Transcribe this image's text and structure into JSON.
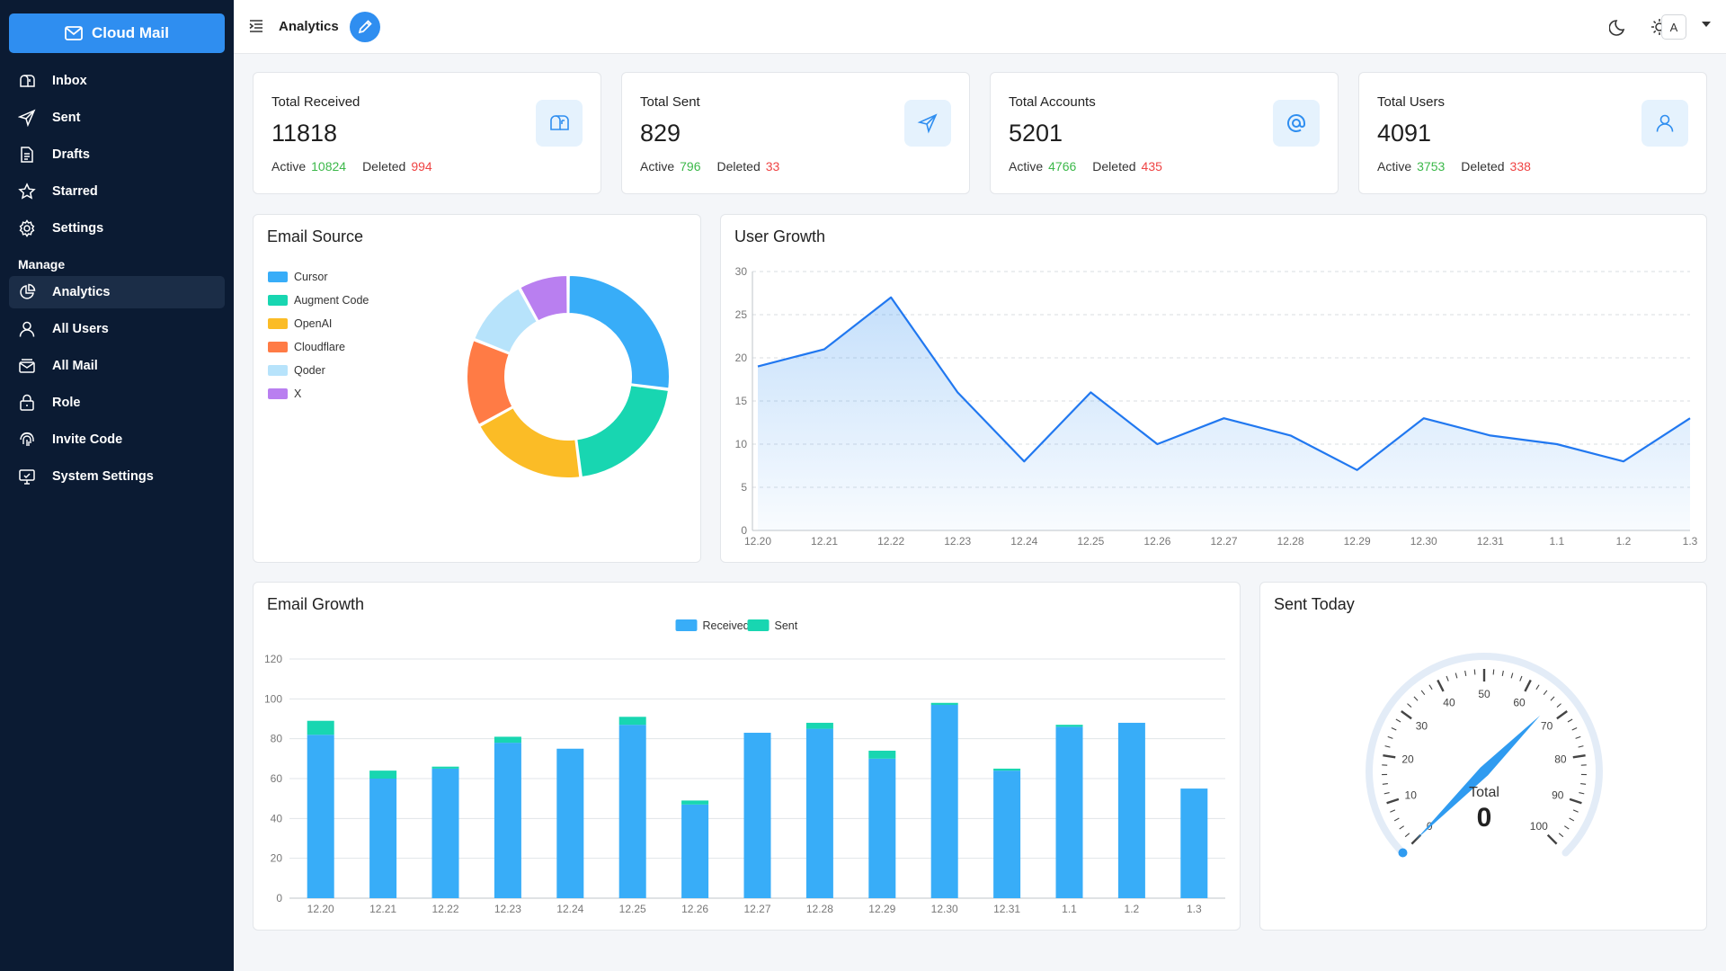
{
  "app": {
    "name": "Cloud Mail",
    "page_title": "Analytics"
  },
  "sidebar": {
    "items": [
      {
        "label": "Inbox",
        "icon": "inbox-icon"
      },
      {
        "label": "Sent",
        "icon": "send-icon"
      },
      {
        "label": "Drafts",
        "icon": "draft-icon"
      },
      {
        "label": "Starred",
        "icon": "star-icon"
      },
      {
        "label": "Settings",
        "icon": "gear-icon"
      }
    ],
    "section_label": "Manage",
    "manage_items": [
      {
        "label": "Analytics",
        "icon": "pie-chart-icon",
        "active": true
      },
      {
        "label": "All Users",
        "icon": "user-icon"
      },
      {
        "label": "All Mail",
        "icon": "mail-stack-icon"
      },
      {
        "label": "Role",
        "icon": "lock-icon"
      },
      {
        "label": "Invite Code",
        "icon": "fingerprint-icon"
      },
      {
        "label": "System Settings",
        "icon": "monitor-settings-icon"
      }
    ]
  },
  "header": {
    "avatar_letter": "A"
  },
  "stats": [
    {
      "title": "Total Received",
      "value": "11818",
      "active_label": "Active",
      "active": "10824",
      "deleted_label": "Deleted",
      "deleted": "994",
      "icon": "mailbox-icon"
    },
    {
      "title": "Total Sent",
      "value": "829",
      "active_label": "Active",
      "active": "796",
      "deleted_label": "Deleted",
      "deleted": "33",
      "icon": "send-icon"
    },
    {
      "title": "Total Accounts",
      "value": "5201",
      "active_label": "Active",
      "active": "4766",
      "deleted_label": "Deleted",
      "deleted": "435",
      "icon": "at-sign-icon"
    },
    {
      "title": "Total Users",
      "value": "4091",
      "active_label": "Active",
      "active": "3753",
      "deleted_label": "Deleted",
      "deleted": "338",
      "icon": "user-icon"
    }
  ],
  "colors": {
    "received": "#38adf8",
    "sent": "#18d6b1",
    "accent": "#2f8ef0",
    "active": "#3cb84a",
    "deleted": "#ef4444"
  },
  "chart_data": [
    {
      "type": "pie",
      "title": "Email Source",
      "donut": true,
      "legend_position": "top-left",
      "slices": [
        {
          "label": "Cursor",
          "value": 27,
          "color": "#38adf8"
        },
        {
          "label": "Augment Code",
          "value": 21,
          "color": "#18d6b1"
        },
        {
          "label": "OpenAI",
          "value": 19,
          "color": "#fbbc26"
        },
        {
          "label": "Cloudflare",
          "value": 14,
          "color": "#ff7b45"
        },
        {
          "label": "Qoder",
          "value": 11,
          "color": "#b7e3fb"
        },
        {
          "label": "X",
          "value": 8,
          "color": "#b97ff0"
        }
      ]
    },
    {
      "type": "area",
      "title": "User Growth",
      "x": [
        "12.20",
        "12.21",
        "12.22",
        "12.23",
        "12.24",
        "12.25",
        "12.26",
        "12.27",
        "12.28",
        "12.29",
        "12.30",
        "12.31",
        "1.1",
        "1.2",
        "1.3"
      ],
      "values": [
        19,
        21,
        27,
        16,
        8,
        16,
        10,
        13,
        11,
        7,
        13,
        11,
        10,
        8,
        13
      ],
      "ylim": [
        0,
        30
      ],
      "yticks": [
        "0",
        "5",
        "10",
        "15",
        "20",
        "25",
        "30"
      ],
      "grid": "dashed horizontal"
    },
    {
      "type": "bar",
      "stacked": true,
      "title": "Email Growth",
      "categories": [
        "12.20",
        "12.21",
        "12.22",
        "12.23",
        "12.24",
        "12.25",
        "12.26",
        "12.27",
        "12.28",
        "12.29",
        "12.30",
        "12.31",
        "1.1",
        "1.2",
        "1.3"
      ],
      "series": [
        {
          "name": "Received",
          "values": [
            82,
            60,
            65,
            78,
            75,
            87,
            47,
            83,
            85,
            70,
            97,
            64,
            86,
            88,
            55
          ]
        },
        {
          "name": "Sent",
          "values": [
            7,
            4,
            1,
            3,
            0,
            4,
            2,
            0,
            3,
            4,
            1,
            1,
            1,
            0,
            0
          ]
        }
      ],
      "ylim": [
        0,
        120
      ],
      "yticks": [
        "0",
        "20",
        "40",
        "60",
        "80",
        "100",
        "120"
      ],
      "legend_position": "top-center"
    },
    {
      "type": "gauge",
      "title": "Sent Today",
      "value": 0,
      "center_label": "Total",
      "center_value": "0",
      "range": [
        0,
        100
      ],
      "tick_labels": [
        "0",
        "10",
        "20",
        "30",
        "40",
        "50",
        "60",
        "70",
        "80",
        "90",
        "100"
      ]
    }
  ]
}
